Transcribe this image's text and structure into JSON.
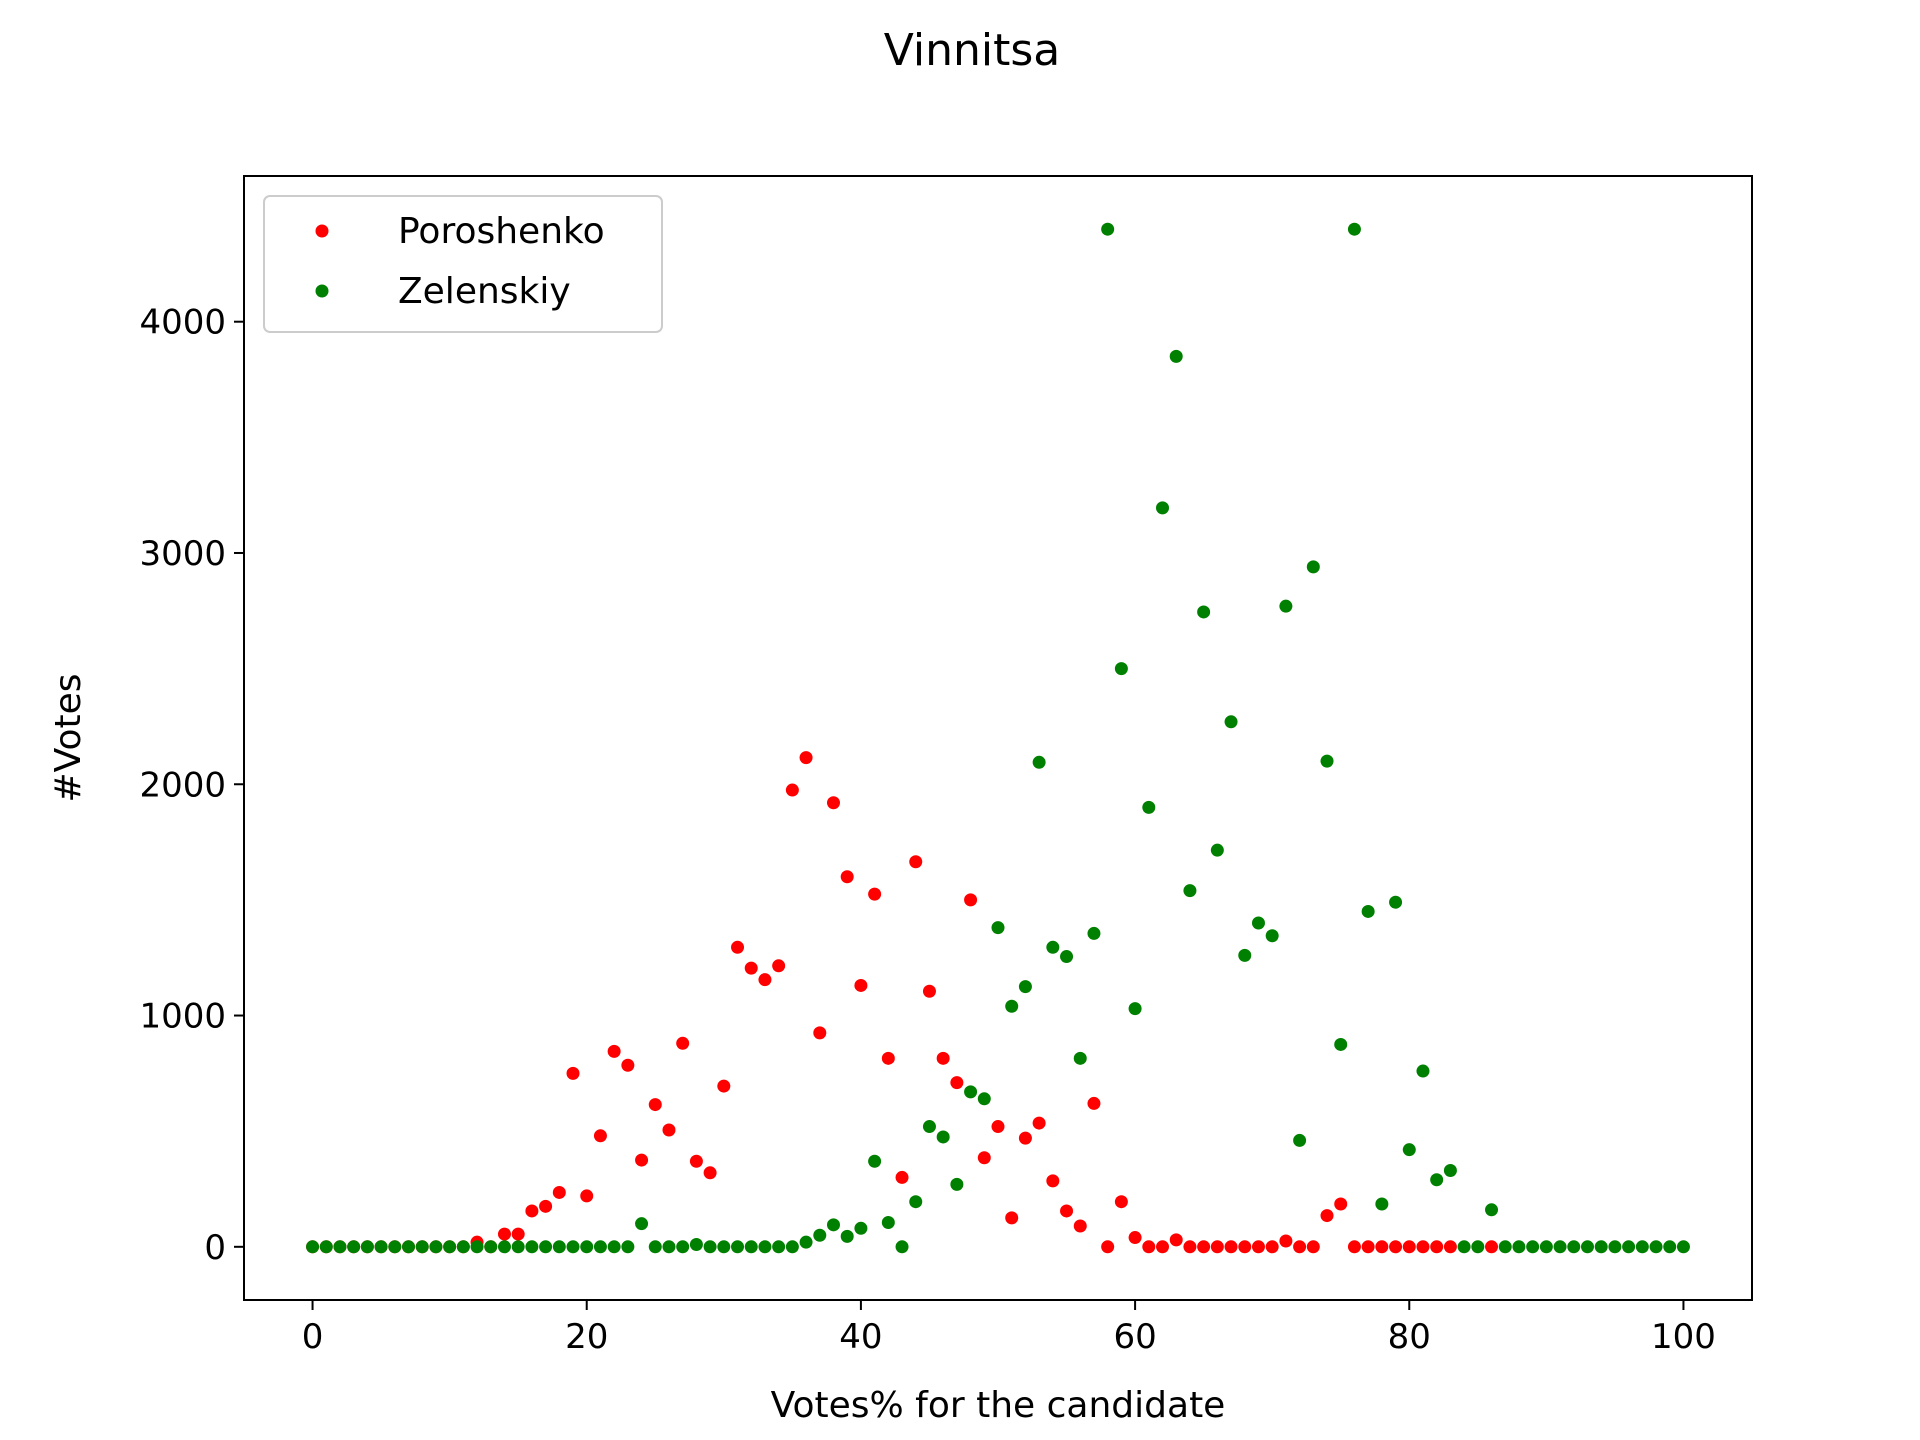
{
  "chart_data": {
    "type": "scatter",
    "title": "Vinnitsa",
    "xlabel": "Votes% for the candidate",
    "ylabel": "#Votes",
    "xlim": [
      -5,
      105
    ],
    "ylim": [
      -230,
      4630
    ],
    "xticks": [
      0,
      20,
      40,
      60,
      80,
      100
    ],
    "yticks": [
      0,
      1000,
      2000,
      3000,
      4000
    ],
    "grid": false,
    "legend_position": "top-left",
    "series": [
      {
        "name": "Poroshenko",
        "color": "#ff0000",
        "points": [
          [
            0,
            0
          ],
          [
            1,
            0
          ],
          [
            2,
            0
          ],
          [
            3,
            0
          ],
          [
            4,
            0
          ],
          [
            5,
            0
          ],
          [
            6,
            0
          ],
          [
            7,
            0
          ],
          [
            8,
            0
          ],
          [
            9,
            0
          ],
          [
            10,
            0
          ],
          [
            11,
            0
          ],
          [
            12,
            20
          ],
          [
            13,
            0
          ],
          [
            14,
            55
          ],
          [
            15,
            55
          ],
          [
            16,
            155
          ],
          [
            17,
            175
          ],
          [
            18,
            235
          ],
          [
            19,
            750
          ],
          [
            20,
            220
          ],
          [
            21,
            480
          ],
          [
            22,
            845
          ],
          [
            23,
            785
          ],
          [
            24,
            375
          ],
          [
            25,
            615
          ],
          [
            26,
            505
          ],
          [
            27,
            880
          ],
          [
            28,
            370
          ],
          [
            29,
            320
          ],
          [
            30,
            695
          ],
          [
            31,
            1295
          ],
          [
            32,
            1205
          ],
          [
            33,
            1155
          ],
          [
            34,
            1215
          ],
          [
            35,
            1975
          ],
          [
            36,
            2115
          ],
          [
            37,
            925
          ],
          [
            38,
            1920
          ],
          [
            39,
            1600
          ],
          [
            40,
            1130
          ],
          [
            41,
            1525
          ],
          [
            42,
            815
          ],
          [
            43,
            300
          ],
          [
            44,
            1665
          ],
          [
            45,
            1105
          ],
          [
            46,
            815
          ],
          [
            47,
            710
          ],
          [
            48,
            1500
          ],
          [
            49,
            385
          ],
          [
            50,
            520
          ],
          [
            51,
            125
          ],
          [
            52,
            470
          ],
          [
            53,
            535
          ],
          [
            54,
            285
          ],
          [
            55,
            155
          ],
          [
            56,
            90
          ],
          [
            57,
            620
          ],
          [
            58,
            0
          ],
          [
            59,
            195
          ],
          [
            60,
            40
          ],
          [
            61,
            0
          ],
          [
            62,
            0
          ],
          [
            63,
            30
          ],
          [
            64,
            0
          ],
          [
            65,
            0
          ],
          [
            66,
            0
          ],
          [
            67,
            0
          ],
          [
            68,
            0
          ],
          [
            69,
            0
          ],
          [
            70,
            0
          ],
          [
            71,
            25
          ],
          [
            72,
            0
          ],
          [
            73,
            0
          ],
          [
            74,
            135
          ],
          [
            75,
            185
          ],
          [
            76,
            0
          ],
          [
            77,
            0
          ],
          [
            78,
            0
          ],
          [
            79,
            0
          ],
          [
            80,
            0
          ],
          [
            81,
            0
          ],
          [
            82,
            0
          ],
          [
            83,
            0
          ],
          [
            86,
            0
          ]
        ]
      },
      {
        "name": "Zelenskiy",
        "color": "#008000",
        "points": [
          [
            0,
            0
          ],
          [
            1,
            0
          ],
          [
            2,
            0
          ],
          [
            3,
            0
          ],
          [
            4,
            0
          ],
          [
            5,
            0
          ],
          [
            6,
            0
          ],
          [
            7,
            0
          ],
          [
            8,
            0
          ],
          [
            9,
            0
          ],
          [
            10,
            0
          ],
          [
            11,
            0
          ],
          [
            12,
            0
          ],
          [
            13,
            0
          ],
          [
            14,
            0
          ],
          [
            15,
            0
          ],
          [
            16,
            0
          ],
          [
            17,
            0
          ],
          [
            18,
            0
          ],
          [
            19,
            0
          ],
          [
            20,
            0
          ],
          [
            21,
            0
          ],
          [
            22,
            0
          ],
          [
            23,
            0
          ],
          [
            24,
            100
          ],
          [
            25,
            0
          ],
          [
            26,
            0
          ],
          [
            27,
            0
          ],
          [
            28,
            10
          ],
          [
            29,
            0
          ],
          [
            30,
            0
          ],
          [
            31,
            0
          ],
          [
            32,
            0
          ],
          [
            33,
            0
          ],
          [
            34,
            0
          ],
          [
            35,
            0
          ],
          [
            36,
            20
          ],
          [
            37,
            50
          ],
          [
            38,
            95
          ],
          [
            39,
            45
          ],
          [
            40,
            80
          ],
          [
            41,
            370
          ],
          [
            42,
            105
          ],
          [
            43,
            0
          ],
          [
            44,
            195
          ],
          [
            45,
            520
          ],
          [
            46,
            475
          ],
          [
            47,
            270
          ],
          [
            48,
            670
          ],
          [
            49,
            640
          ],
          [
            50,
            1380
          ],
          [
            51,
            1040
          ],
          [
            52,
            1125
          ],
          [
            53,
            2095
          ],
          [
            54,
            1295
          ],
          [
            55,
            1255
          ],
          [
            56,
            815
          ],
          [
            57,
            1355
          ],
          [
            58,
            4400
          ],
          [
            59,
            2500
          ],
          [
            60,
            1030
          ],
          [
            61,
            1900
          ],
          [
            62,
            3195
          ],
          [
            63,
            3850
          ],
          [
            64,
            1540
          ],
          [
            65,
            2745
          ],
          [
            66,
            1715
          ],
          [
            67,
            2270
          ],
          [
            68,
            1260
          ],
          [
            69,
            1400
          ],
          [
            70,
            1345
          ],
          [
            71,
            2770
          ],
          [
            72,
            460
          ],
          [
            73,
            2940
          ],
          [
            74,
            2100
          ],
          [
            75,
            875
          ],
          [
            76,
            4400
          ],
          [
            77,
            1450
          ],
          [
            78,
            185
          ],
          [
            79,
            1490
          ],
          [
            80,
            420
          ],
          [
            81,
            760
          ],
          [
            82,
            290
          ],
          [
            83,
            330
          ],
          [
            84,
            0
          ],
          [
            85,
            0
          ],
          [
            86,
            160
          ],
          [
            87,
            0
          ],
          [
            88,
            0
          ],
          [
            89,
            0
          ],
          [
            90,
            0
          ],
          [
            91,
            0
          ],
          [
            92,
            0
          ],
          [
            93,
            0
          ],
          [
            94,
            0
          ],
          [
            95,
            0
          ],
          [
            96,
            0
          ],
          [
            97,
            0
          ],
          [
            98,
            0
          ],
          [
            99,
            0
          ],
          [
            100,
            0
          ]
        ]
      }
    ]
  }
}
